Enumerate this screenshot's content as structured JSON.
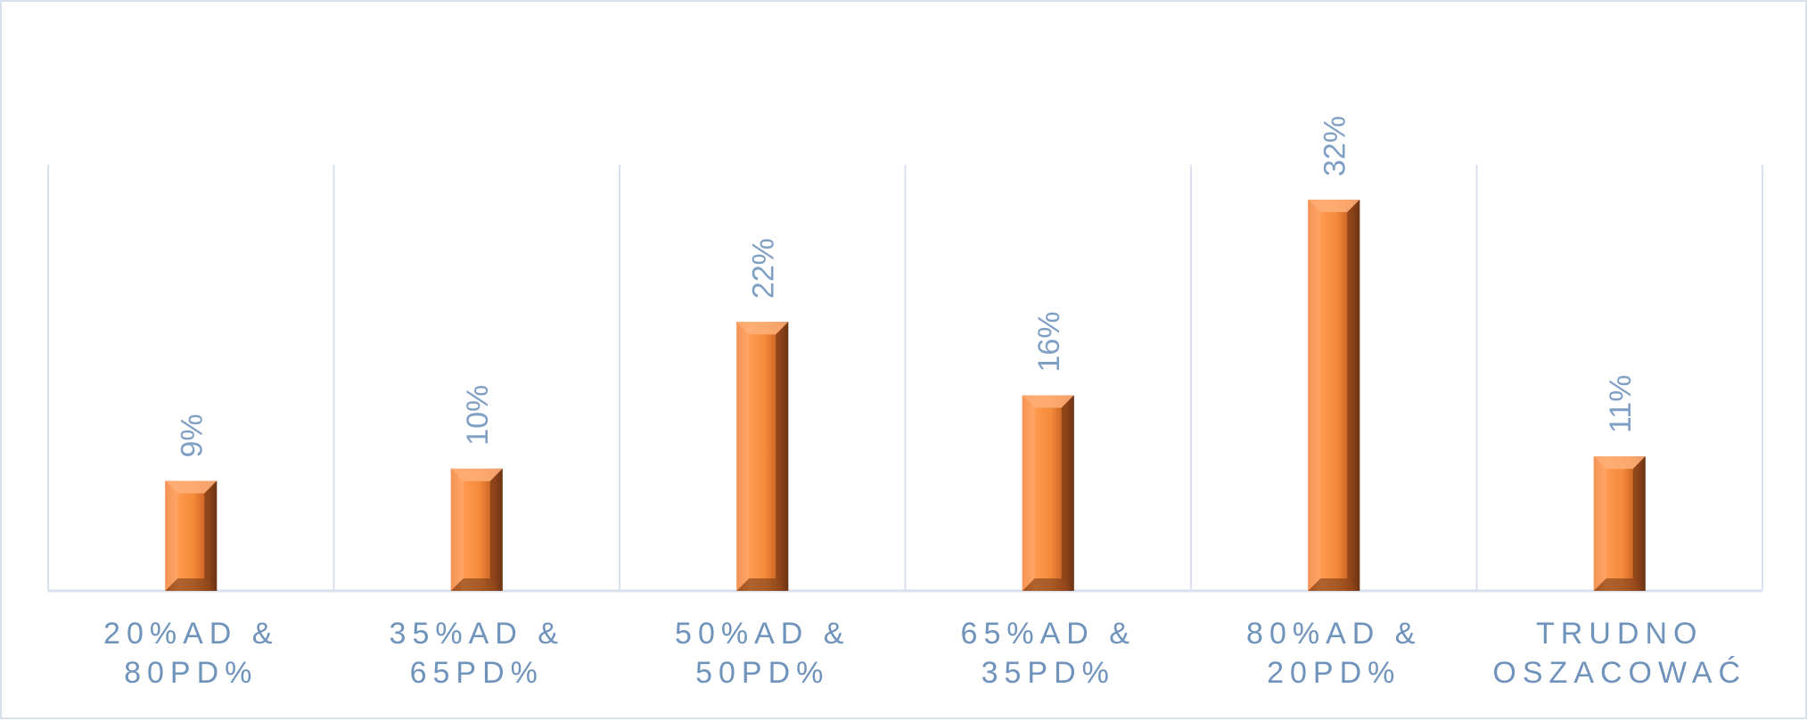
{
  "chart_data": {
    "type": "bar",
    "categories": [
      [
        "20%AD &",
        "80PD%"
      ],
      [
        "35%AD &",
        "65PD%"
      ],
      [
        "50%AD &",
        "50PD%"
      ],
      [
        "65%AD &",
        "35PD%"
      ],
      [
        "80%AD &",
        "20PD%"
      ],
      [
        "TRUDNO",
        "OSZACOWAĆ"
      ]
    ],
    "values": [
      9,
      10,
      22,
      16,
      32,
      11
    ],
    "data_labels": [
      "9%",
      "10%",
      "22%",
      "16%",
      "32%",
      "11%"
    ],
    "title": "",
    "xlabel": "",
    "ylabel": "",
    "ylim": [
      0,
      35
    ],
    "grid": "vertical category separators",
    "legend": "none",
    "colors": {
      "bar": "#f58a3a",
      "bar_dark": "#6b3414",
      "bar_light": "#ffb07a",
      "axis": "#d9e1ee",
      "category_text": "#6f93bb",
      "value_text": "#7f9fc4"
    }
  }
}
